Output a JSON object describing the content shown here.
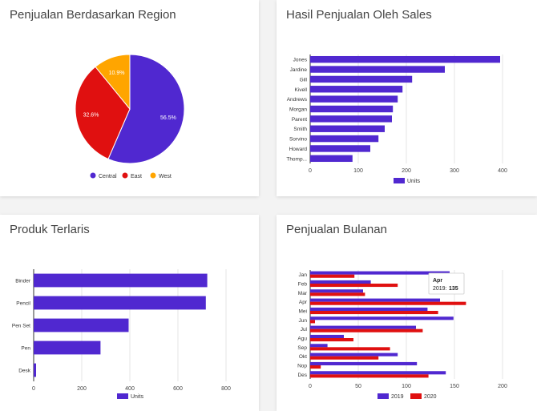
{
  "charts": {
    "region": {
      "title": "Penjualan Berdasarkan Region"
    },
    "sales": {
      "title": "Hasil Penjualan Oleh Sales"
    },
    "products": {
      "title": "Produk Terlaris"
    },
    "monthly": {
      "title": "Penjualan Bulanan"
    }
  },
  "colors": {
    "purple": "#5028d0",
    "red": "#e01010",
    "orange": "#ffa500",
    "grid": "#e6e6e6"
  },
  "chart_data": [
    {
      "type": "pie",
      "title": "Penjualan Berdasarkan Region",
      "slices": [
        {
          "label": "Central",
          "value": 56.5,
          "pct_label": "56.5%",
          "color": "#5028d0"
        },
        {
          "label": "East",
          "value": 32.6,
          "pct_label": "32.6%",
          "color": "#e01010"
        },
        {
          "label": "West",
          "value": 10.9,
          "pct_label": "10.9%",
          "color": "#ffa500"
        }
      ],
      "legend": "bottom"
    },
    {
      "type": "bar",
      "orientation": "horizontal",
      "title": "Hasil Penjualan Oleh Sales",
      "categories": [
        "Jones",
        "Jardine",
        "Gill",
        "Kivell",
        "Andrews",
        "Morgan",
        "Parent",
        "Smith",
        "Sorvino",
        "Howard",
        "Thomp..."
      ],
      "series": [
        {
          "name": "Units",
          "values": [
            395,
            280,
            212,
            192,
            182,
            172,
            170,
            155,
            142,
            125,
            88
          ],
          "color": "#5028d0"
        }
      ],
      "xlim": [
        0,
        400
      ],
      "xticks": [
        0,
        100,
        200,
        300,
        400
      ],
      "legend": "bottom",
      "grid": true
    },
    {
      "type": "bar",
      "orientation": "horizontal",
      "title": "Produk Terlaris",
      "categories": [
        "Binder",
        "Pencil",
        "Pen Set",
        "Pen",
        "Desk"
      ],
      "series": [
        {
          "name": "Units",
          "values": [
            722,
            716,
            395,
            278,
            10
          ],
          "color": "#5028d0"
        }
      ],
      "xlim": [
        0,
        800
      ],
      "xticks": [
        0,
        200,
        400,
        600,
        800
      ],
      "legend": "bottom",
      "grid": true
    },
    {
      "type": "bar",
      "orientation": "horizontal",
      "title": "Penjualan Bulanan",
      "categories": [
        "Jan",
        "Feb",
        "Mar",
        "Apr",
        "Mei",
        "Jun",
        "Jul",
        "Agu",
        "Sep",
        "Okt",
        "Nop",
        "Des"
      ],
      "series": [
        {
          "name": "2019",
          "values": [
            145,
            63,
            55,
            135,
            122,
            149,
            110,
            35,
            18,
            91,
            111,
            141
          ],
          "color": "#5028d0"
        },
        {
          "name": "2020",
          "values": [
            46,
            91,
            57,
            162,
            133,
            5,
            117,
            45,
            83,
            71,
            11,
            123
          ],
          "color": "#e01010"
        }
      ],
      "xlim": [
        0,
        200
      ],
      "xticks": [
        0,
        50,
        100,
        150,
        200
      ],
      "legend": "bottom",
      "grid": true,
      "tooltip": {
        "title": "Apr",
        "label": "2019:",
        "value": "135"
      }
    }
  ]
}
